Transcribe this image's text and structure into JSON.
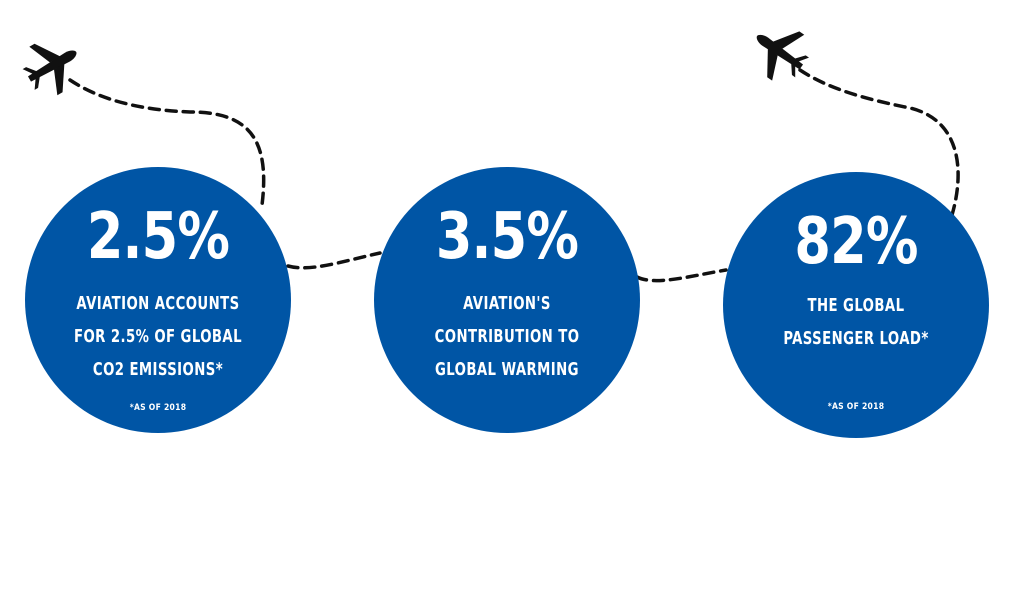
{
  "stats": [
    {
      "value": "2.5%",
      "lines": [
        "AVIATION ACCOUNTS",
        "FOR 2.5% OF GLOBAL",
        "CO2 EMISSIONS*"
      ],
      "note": "*AS OF 2018"
    },
    {
      "value": "3.5%",
      "lines": [
        "AVIATION'S",
        "CONTRIBUTION TO",
        "GLOBAL WARMING"
      ],
      "note": ""
    },
    {
      "value": "82%",
      "lines": [
        "THE GLOBAL",
        "PASSENGER LOAD*"
      ],
      "note": "*AS OF 2018"
    }
  ],
  "colors": {
    "circle": "#0055a5",
    "text": "#ffffff",
    "path": "#111111"
  },
  "icons": [
    "airplane-icon-left",
    "airplane-icon-right"
  ]
}
